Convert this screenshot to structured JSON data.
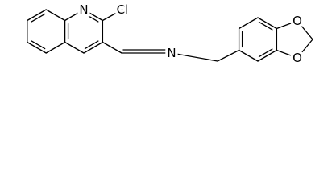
{
  "atoms": [
    {
      "label": "N"
    },
    {
      "label": "Cl"
    },
    {
      "label": "N"
    },
    {
      "label": "O"
    },
    {
      "label": "O"
    }
  ]
}
